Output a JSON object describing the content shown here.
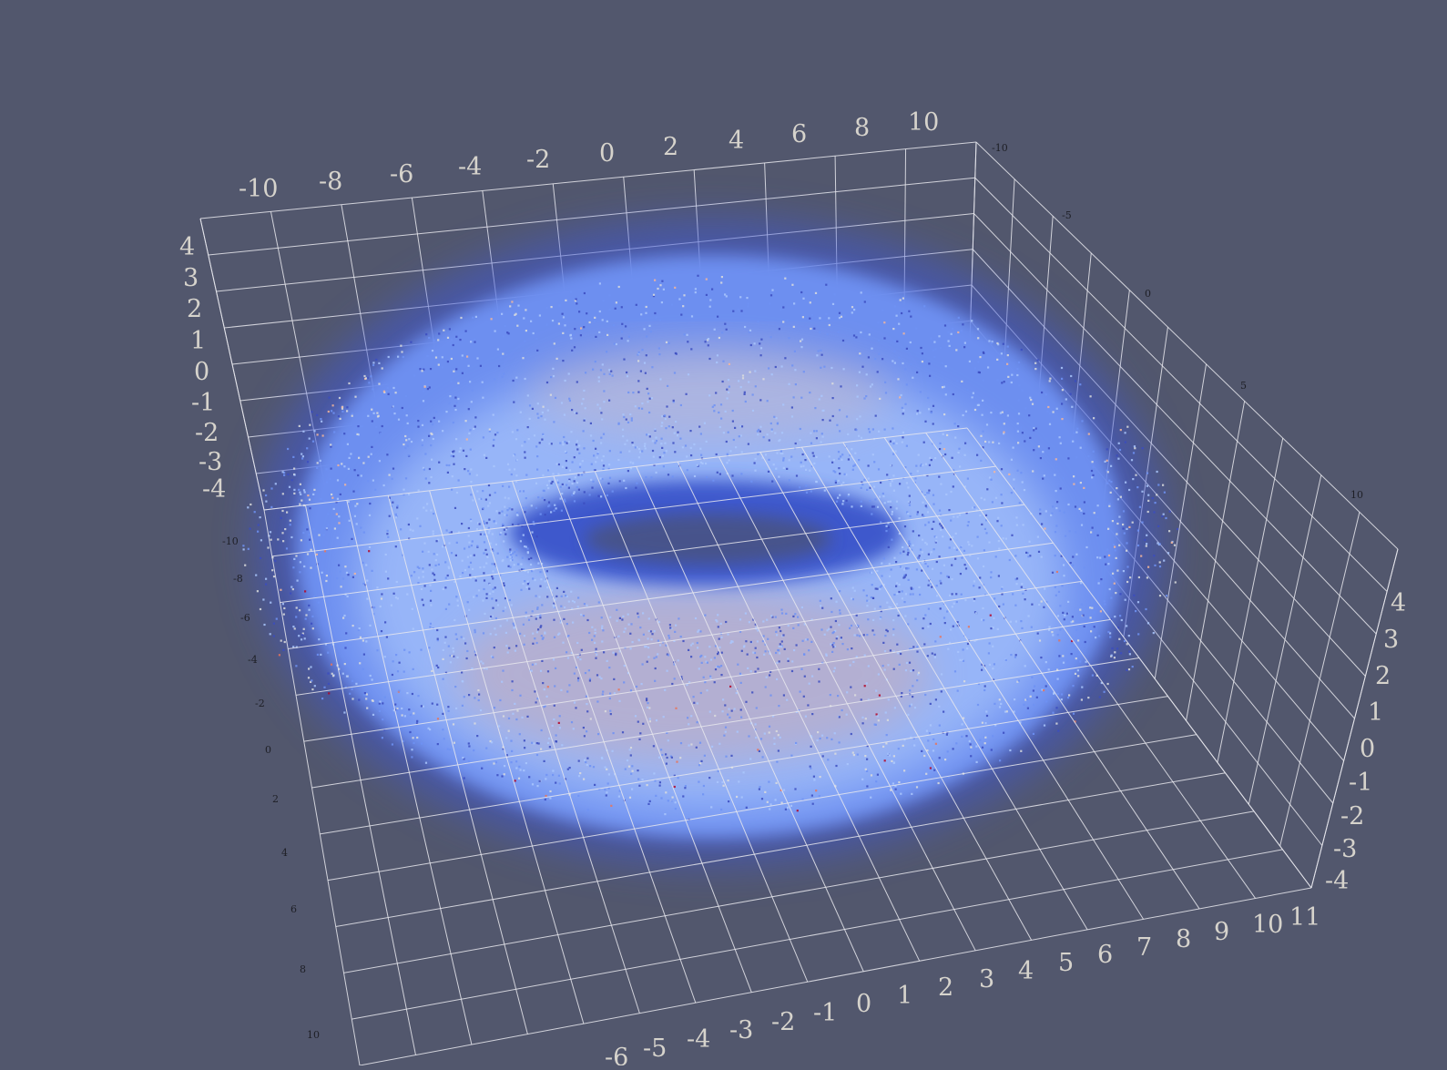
{
  "scene": {
    "background_color": "#52576d",
    "grid_color": "#e8e8ee",
    "label_color": "#d6d3cc",
    "colormap": [
      "#3b4cc0",
      "#6f92f3",
      "#aac7fd",
      "#dcdddd",
      "#f5b69b",
      "#e7745b",
      "#b40426"
    ]
  },
  "axes": {
    "top_x": {
      "ticks": [
        "-10",
        "-8",
        "-6",
        "-4",
        "-2",
        "0",
        "2",
        "4",
        "6",
        "8",
        "10"
      ]
    },
    "left_z": {
      "ticks": [
        "4",
        "3",
        "2",
        "1",
        "0",
        "-1",
        "-2",
        "-3",
        "-4"
      ]
    },
    "right_top_y": {
      "ticks": [
        "-10",
        "-5",
        "0",
        "5",
        "10"
      ]
    },
    "right_z": {
      "ticks": [
        "4",
        "3",
        "2",
        "1",
        "0",
        "-1",
        "-2",
        "-3",
        "-4"
      ]
    },
    "left_y": {
      "ticks": [
        "-10",
        "-8",
        "-6",
        "-4",
        "-2",
        "0",
        "2",
        "4",
        "6",
        "8",
        "10"
      ]
    },
    "bottom_x": {
      "ticks": [
        "-6",
        "-5",
        "-4",
        "-3",
        "-2",
        "-1",
        "0",
        "1",
        "2",
        "3",
        "4",
        "5",
        "6",
        "7",
        "8",
        "9",
        "10",
        "11"
      ]
    }
  }
}
